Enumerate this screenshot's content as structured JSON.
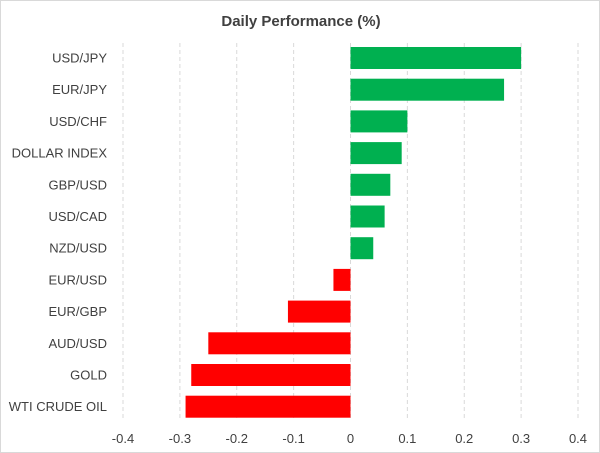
{
  "chart_data": {
    "type": "bar",
    "orientation": "horizontal",
    "title": "Daily Performance (%)",
    "xlabel": "",
    "ylabel": "",
    "xlim": [
      -0.4,
      0.4
    ],
    "ticks": [
      -0.4,
      -0.3,
      -0.2,
      -0.1,
      0,
      0.1,
      0.2,
      0.3,
      0.4
    ],
    "tick_labels": [
      "-0.4",
      "-0.3",
      "-0.2",
      "-0.1",
      "0",
      "0.1",
      "0.2",
      "0.3",
      "0.4"
    ],
    "grid": true,
    "categories": [
      "USD/JPY",
      "EUR/JPY",
      "USD/CHF",
      "DOLLAR INDEX",
      "GBP/USD",
      "USD/CAD",
      "NZD/USD",
      "EUR/USD",
      "EUR/GBP",
      "AUD/USD",
      "GOLD",
      "WTI CRUDE OIL"
    ],
    "values": [
      0.3,
      0.27,
      0.1,
      0.09,
      0.07,
      0.06,
      0.04,
      -0.03,
      -0.11,
      -0.25,
      -0.28,
      -0.29
    ],
    "colors": {
      "positive": "#00b050",
      "negative": "#ff0000"
    }
  }
}
